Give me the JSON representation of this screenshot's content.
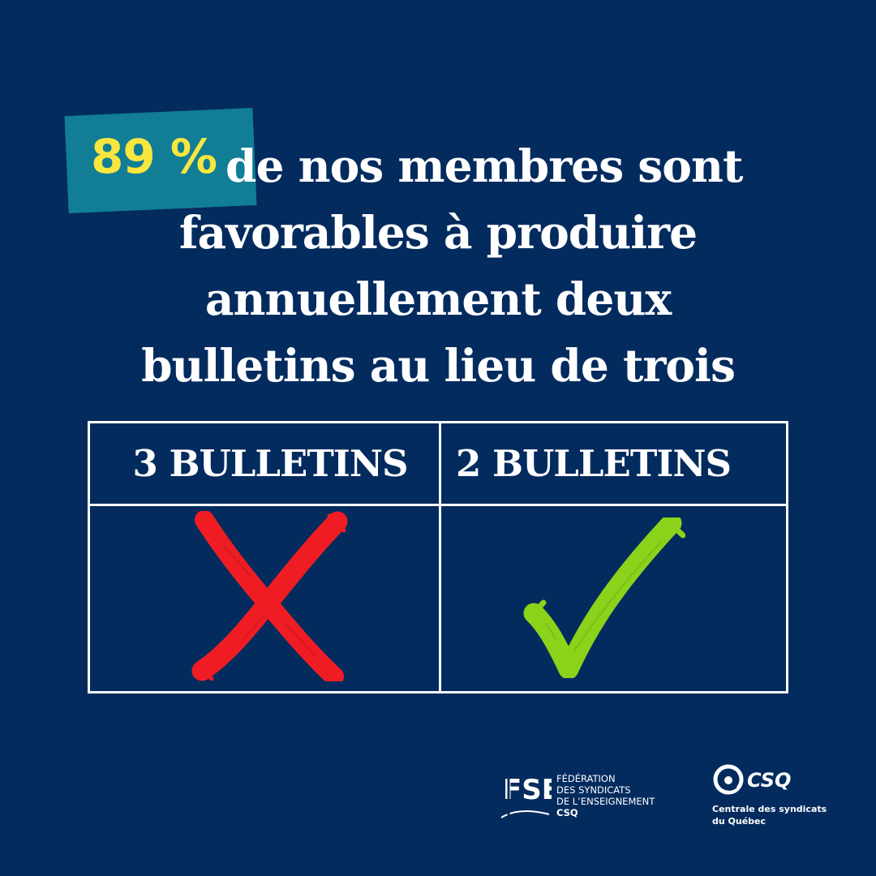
{
  "colors": {
    "background": "#032b5e",
    "highlight": "#117e96",
    "percent_text": "#f7e63e",
    "main_text": "#ffffff",
    "x_mark": "#ef1d23",
    "check_mark": "#8bd21a"
  },
  "headline": {
    "percent": "89 %",
    "line_1": "de nos membres sont",
    "line_2": "favorables à  produire",
    "line_3": "annuellement deux",
    "line_4": "bulletins au lieu de trois"
  },
  "comparison": {
    "left_heading": "3 BULLETINS",
    "right_heading": "2 BULLETINS",
    "left_icon": "x-mark-icon",
    "right_icon": "check-mark-icon"
  },
  "logos": {
    "fse_mark": "FSE",
    "fse_line_1": "FÉDÉRATION",
    "fse_line_2": "DES SYNDICATS",
    "fse_line_3": "DE L’ENSEIGNEMENT",
    "fse_line_4": "CSQ",
    "csq_name": "CSQ",
    "csq_line_1": "Centrale des syndicats",
    "csq_line_2": "du Québec"
  }
}
